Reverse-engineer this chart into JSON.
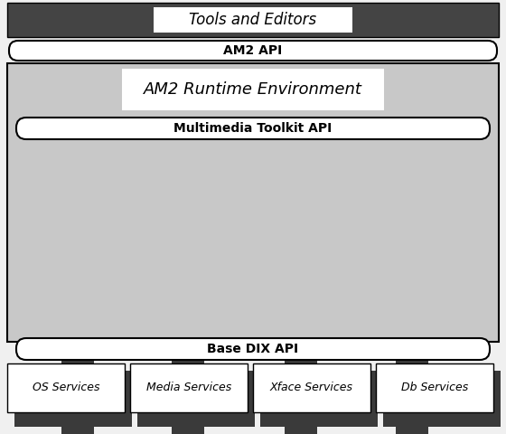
{
  "fig_width": 5.6,
  "fig_height": 4.8,
  "dpi": 100,
  "bg_color": "#f0f0f0",
  "title": "Tools and Editors",
  "am2_api_label": "AM2 API",
  "runtime_label": "AM2 Runtime Environment",
  "multimedia_label": "Multimedia Toolkit API",
  "base_dix_label": "Base DIX API",
  "services": [
    "OS Services",
    "Media Services",
    "Xface Services",
    "Db Services"
  ],
  "dark_bar_color": "#3a3a3a",
  "runtime_bg": "#c8c8c8",
  "dark_header_bg": "#444444",
  "white": "#ffffff",
  "black": "#000000",
  "pill_bg": "#f8f8f8",
  "service_shadow": "#555555"
}
